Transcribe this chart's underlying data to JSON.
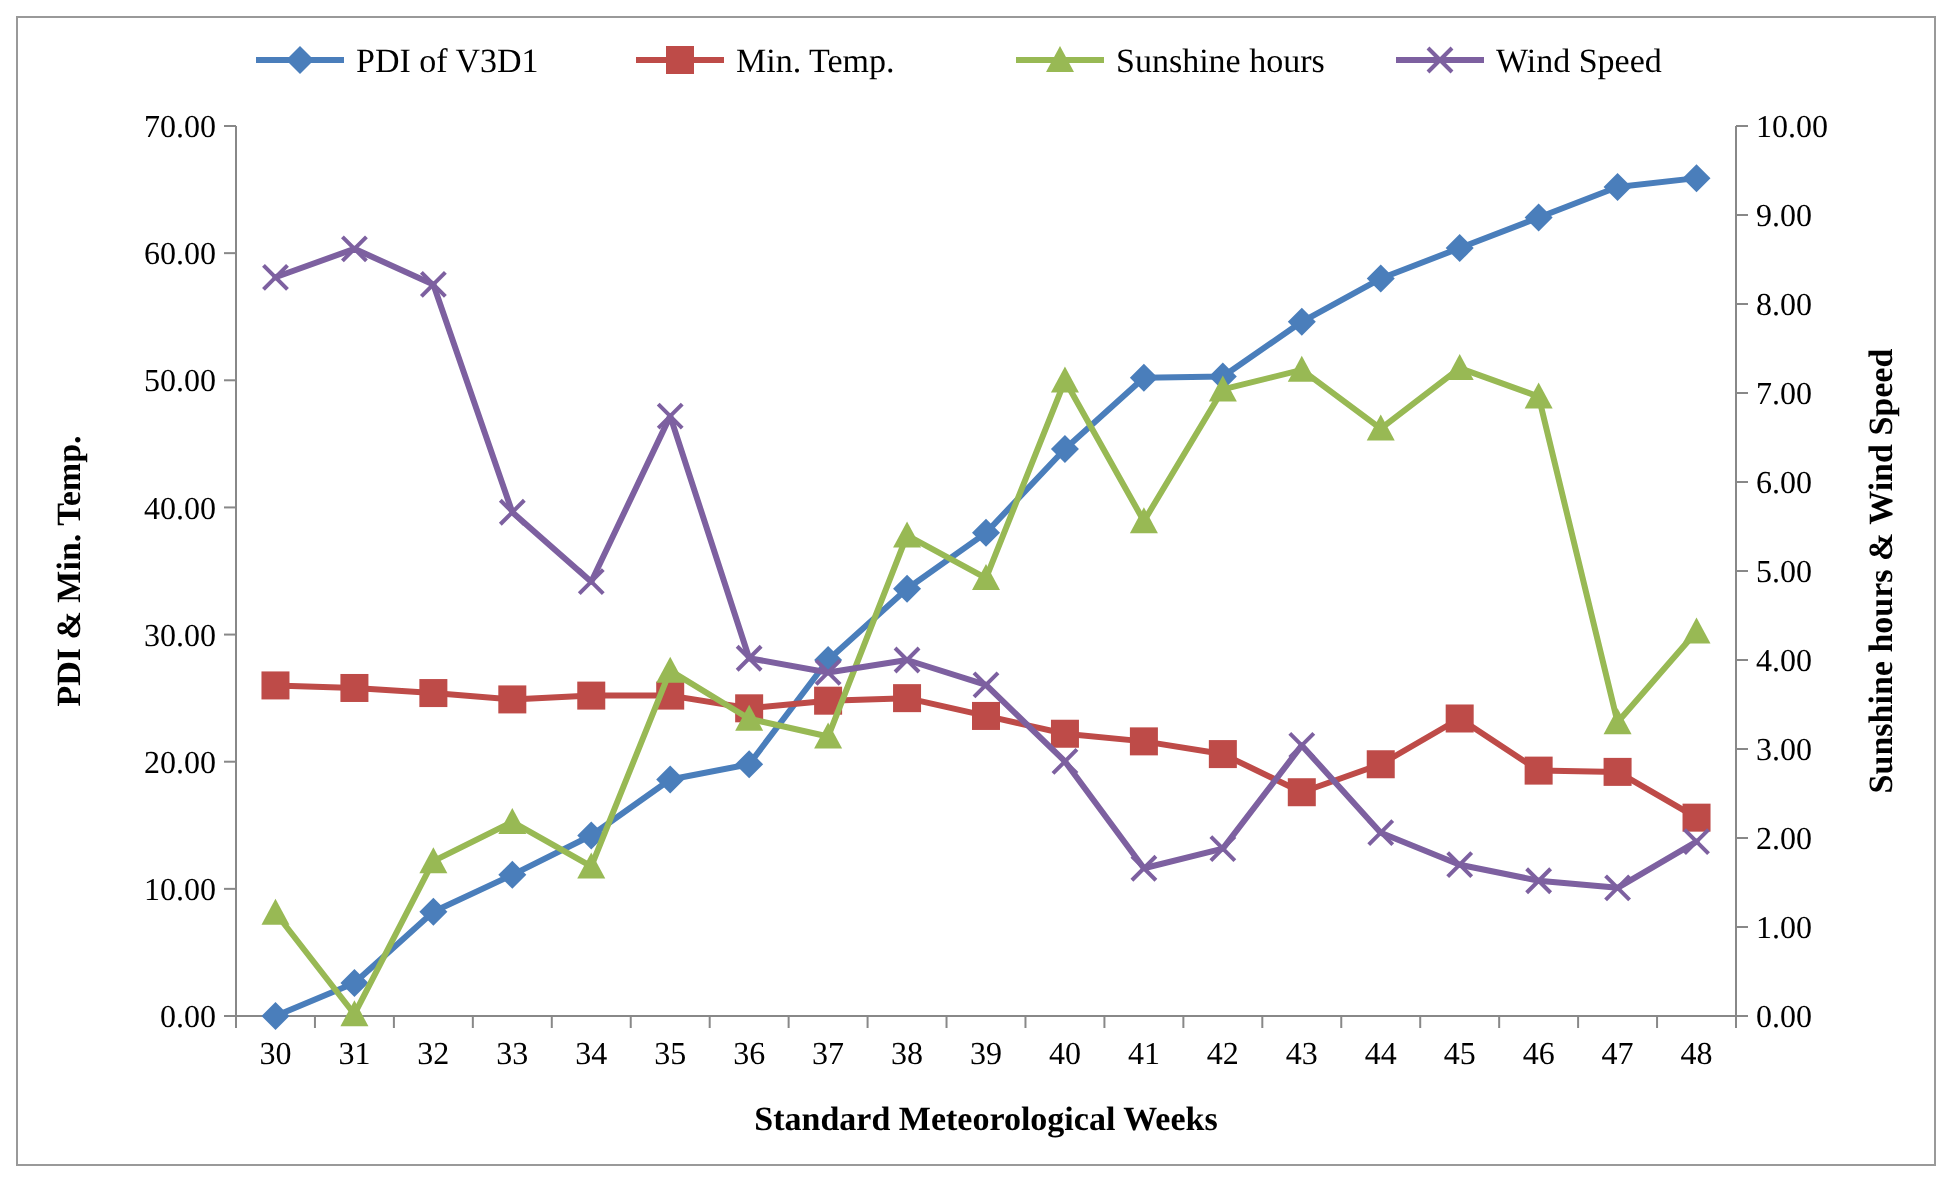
{
  "chart_data": {
    "type": "line",
    "xlabel": "Standard Meteorological Weeks",
    "ylabel": "PDI & Min. Temp.",
    "y2label": "Sunshine hours  & Wind Speed",
    "categories": [
      "30",
      "31",
      "32",
      "33",
      "34",
      "35",
      "36",
      "37",
      "38",
      "39",
      "40",
      "41",
      "42",
      "43",
      "44",
      "45",
      "46",
      "47",
      "48"
    ],
    "series": [
      {
        "name": "PDI of V3D1",
        "color": "#4a7ebb",
        "marker": "diamond",
        "values": [
          0,
          2.6,
          8.2,
          11.1,
          14.2,
          18.6,
          19.8,
          28,
          33.6,
          38,
          44.6,
          50.2,
          50.3,
          54.6,
          58,
          60.4,
          62.8,
          65.2,
          65.9
        ]
      },
      {
        "name": "Min. Temp.",
        "color": "#be4b48",
        "marker": "square",
        "values": [
          26,
          25.8,
          25.4,
          24.9,
          25.2,
          25.2,
          24.2,
          24.8,
          25,
          23.6,
          22.2,
          21.6,
          20.6,
          17.6,
          19.8,
          23.4,
          19.3,
          19.2,
          15.6
        ]
      },
      {
        "name": "Sunshine hours",
        "color": "#98b954",
        "marker": "triangle",
        "axis": "y2",
        "values": [
          1.16,
          0.02,
          1.74,
          2.18,
          1.68,
          3.88,
          3.34,
          3.14,
          5.4,
          4.92,
          7.14,
          5.56,
          7.04,
          7.26,
          6.6,
          7.28,
          6.96,
          3.3,
          4.32
        ]
      },
      {
        "name": "Wind Speed",
        "color": "#7d60a0",
        "marker": "cross",
        "axis": "y2",
        "values": [
          8.3,
          8.62,
          8.22,
          5.66,
          4.88,
          6.74,
          4.02,
          3.86,
          4.0,
          3.72,
          2.86,
          1.66,
          1.88,
          3.04,
          2.06,
          1.7,
          1.52,
          1.44,
          1.96
        ]
      }
    ],
    "ylim": [
      0,
      70
    ],
    "yticks": [
      {
        "value": 0,
        "label": "0.00"
      },
      {
        "value": 10,
        "label": "10.00"
      },
      {
        "value": 20,
        "label": "20.00"
      },
      {
        "value": 30,
        "label": "30.00"
      },
      {
        "value": 40,
        "label": "40.00"
      },
      {
        "value": 50,
        "label": "50.00"
      },
      {
        "value": 60,
        "label": "60.00"
      },
      {
        "value": 70,
        "label": "70.00"
      }
    ],
    "y2lim": [
      0,
      10
    ],
    "y2ticks": [
      {
        "value": 0,
        "label": "0.00"
      },
      {
        "value": 1,
        "label": "1.00"
      },
      {
        "value": 2,
        "label": "2.00"
      },
      {
        "value": 3,
        "label": "3.00"
      },
      {
        "value": 4,
        "label": "4.00"
      },
      {
        "value": 5,
        "label": "5.00"
      },
      {
        "value": 6,
        "label": "6.00"
      },
      {
        "value": 7,
        "label": "7.00"
      },
      {
        "value": 8,
        "label": "8.00"
      },
      {
        "value": 9,
        "label": "9.00"
      },
      {
        "value": 10,
        "label": "10.00"
      }
    ],
    "legend": "top",
    "grid": false
  }
}
